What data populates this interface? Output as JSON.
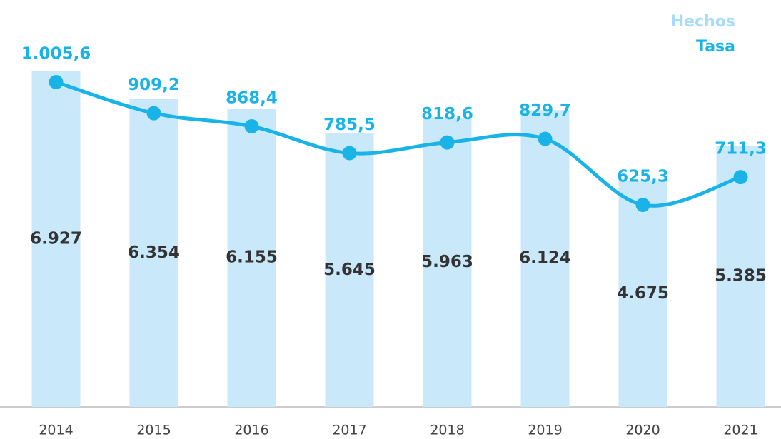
{
  "chart_data": {
    "type": "bar_line",
    "categories": [
      "2014",
      "2015",
      "2016",
      "2017",
      "2018",
      "2019",
      "2020",
      "2021"
    ],
    "series": [
      {
        "name": "Hechos",
        "type": "bar",
        "color": "#c9e9fb",
        "legend_color": "#a6dcf7",
        "values": [
          6927,
          6354,
          6155,
          5645,
          5963,
          6124,
          4675,
          5385
        ],
        "value_labels": [
          "6.927",
          "6.354",
          "6.155",
          "5.645",
          "5.963",
          "6.124",
          "4.675",
          "5.385"
        ]
      },
      {
        "name": "Tasa",
        "type": "line",
        "color": "#1ab3e8",
        "axis": "y2",
        "values": [
          1005.6,
          909.2,
          868.4,
          785.5,
          818.6,
          829.7,
          625.3,
          711.3
        ],
        "value_labels": [
          "1.005,6",
          "909,2",
          "868,4",
          "785,5",
          "818,6",
          "829,7",
          "625,3",
          "711,3"
        ]
      }
    ],
    "ylim": [
      0,
      8000
    ],
    "y2lim": [
      0,
      1200
    ],
    "legend": "top-right"
  }
}
